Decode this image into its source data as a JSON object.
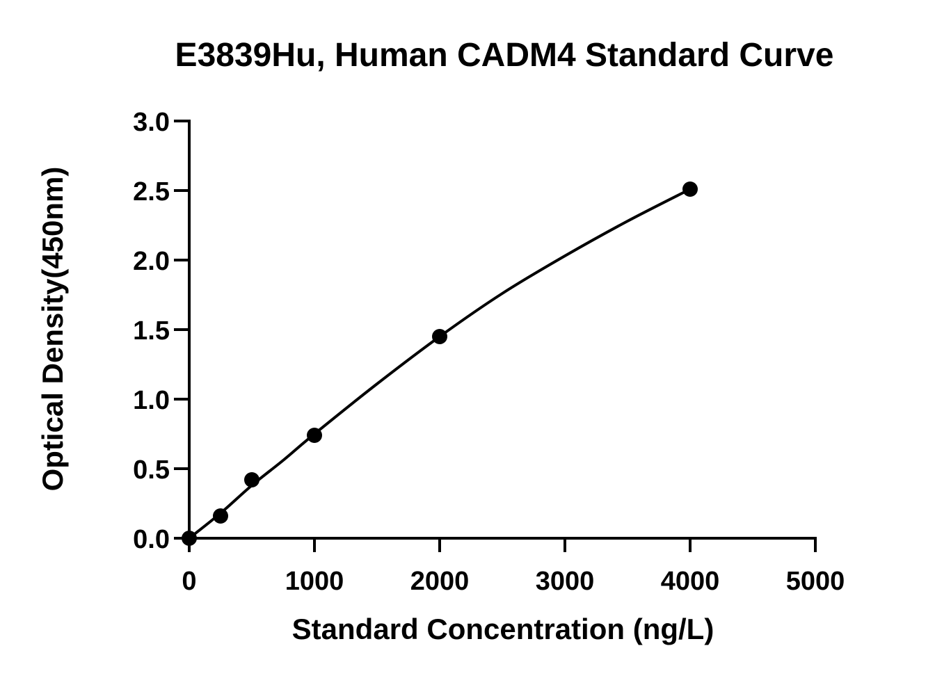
{
  "chart_data": {
    "type": "scatter",
    "title": "E3839Hu, Human CADM4 Standard Curve",
    "xlabel": "Standard Concentration (ng/L)",
    "ylabel": "Optical Density(450nm)",
    "xlim": [
      0,
      5000
    ],
    "ylim": [
      0,
      3.0
    ],
    "x_ticks": [
      0,
      1000,
      2000,
      3000,
      4000,
      5000
    ],
    "x_tick_labels": [
      "0",
      "1000",
      "2000",
      "3000",
      "4000",
      "5000"
    ],
    "y_ticks": [
      0,
      0.5,
      1.0,
      1.5,
      2.0,
      2.5,
      3.0
    ],
    "y_tick_labels": [
      "0.0",
      "0.5",
      "1.0",
      "1.5",
      "2.0",
      "2.5",
      "3.0"
    ],
    "grid": false,
    "legend": "none",
    "series": [
      {
        "points": [
          {
            "x": 0,
            "y": 0.0
          },
          {
            "x": 250,
            "y": 0.16
          },
          {
            "x": 500,
            "y": 0.42
          },
          {
            "x": 1000,
            "y": 0.74
          },
          {
            "x": 2000,
            "y": 1.45
          },
          {
            "x": 4000,
            "y": 2.51
          }
        ],
        "fit_curve": [
          {
            "x": 0,
            "y": 0.0
          },
          {
            "x": 250,
            "y": 0.18
          },
          {
            "x": 500,
            "y": 0.38
          },
          {
            "x": 750,
            "y": 0.56
          },
          {
            "x": 1000,
            "y": 0.75
          },
          {
            "x": 1500,
            "y": 1.11
          },
          {
            "x": 2000,
            "y": 1.45
          },
          {
            "x": 2500,
            "y": 1.76
          },
          {
            "x": 3000,
            "y": 2.03
          },
          {
            "x": 3500,
            "y": 2.28
          },
          {
            "x": 4000,
            "y": 2.51
          }
        ],
        "color": "#000000"
      }
    ]
  }
}
